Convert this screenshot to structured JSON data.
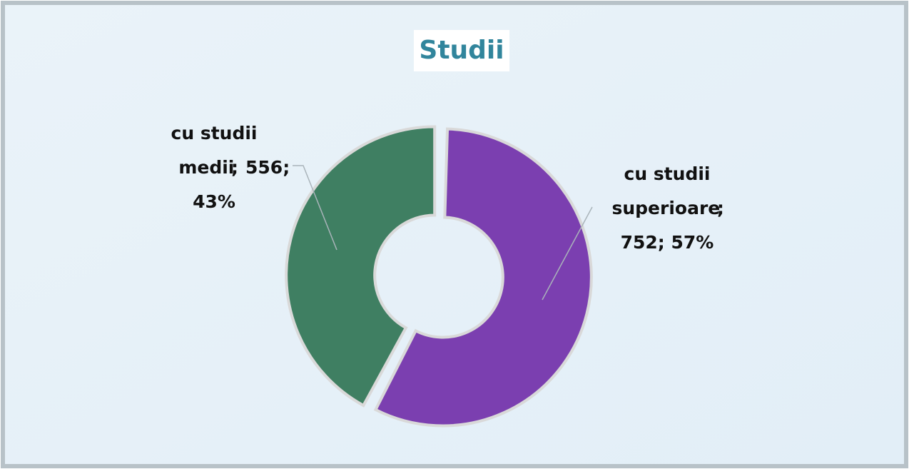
{
  "chart_data": {
    "type": "donut",
    "title": "Studii",
    "categories": [
      "cu studii superioare",
      "cu studii medii"
    ],
    "values": [
      752,
      556
    ],
    "value_labels": [
      "752; 57%",
      "556; 43%"
    ],
    "separator": ";",
    "colors": [
      "#7b3fb0",
      "#3f7f62"
    ]
  }
}
